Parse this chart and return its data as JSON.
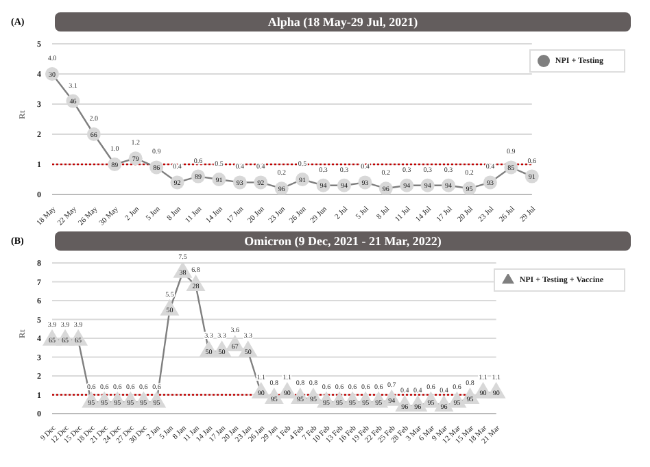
{
  "chart_data": [
    {
      "type": "line",
      "title": "Alpha (18 May-29 Jul, 2021)",
      "ylabel": "Rt",
      "annotations": [
        "(A)",
        {
          "text": "30",
          "x": "18 May",
          "y": 4.0
        },
        {
          "text": "46",
          "x": "22 May",
          "y": 3.1
        },
        {
          "text": "66",
          "x": "26 May",
          "y": 2.0
        },
        {
          "text": "89",
          "x": "30 May",
          "y": 1.0
        },
        {
          "text": "79",
          "x": "2 Jun",
          "y": 1.2
        },
        {
          "text": "86",
          "x": "5 Jun",
          "y": 0.9
        },
        {
          "text": "92",
          "x": "8 Jun",
          "y": 0.4
        },
        {
          "text": "89",
          "x": "11 Jun",
          "y": 0.6
        },
        {
          "text": "91",
          "x": "14 Jun",
          "y": 0.5
        },
        {
          "text": "93",
          "x": "17 Jun",
          "y": 0.4
        },
        {
          "text": "92",
          "x": "20 Jun",
          "y": 0.4
        },
        {
          "text": "96",
          "x": "23 Jun",
          "y": 0.2
        },
        {
          "text": "91",
          "x": "26 Jun",
          "y": 0.5
        },
        {
          "text": "94",
          "x": "29 Jun",
          "y": 0.3
        },
        {
          "text": "94",
          "x": "2 Jul",
          "y": 0.3
        },
        {
          "text": "93",
          "x": "5 Jul",
          "y": 0.4
        },
        {
          "text": "96",
          "x": "8 Jul",
          "y": 0.2
        },
        {
          "text": "94",
          "x": "11 Jul",
          "y": 0.3
        },
        {
          "text": "94",
          "x": "14 Jul",
          "y": 0.3
        },
        {
          "text": "94",
          "x": "17 Jul",
          "y": 0.3
        },
        {
          "text": "95",
          "x": "20 Jul",
          "y": 0.2
        },
        {
          "text": "93",
          "x": "23 Jul",
          "y": 0.4
        },
        {
          "text": "85",
          "x": "26 Jul",
          "y": 0.9
        },
        {
          "text": "91",
          "x": "29 Jul",
          "y": 0.6
        }
      ],
      "categories": [
        "18 May",
        "22 May",
        "26 May",
        "30 May",
        "2 Jun",
        "5 Jun",
        "8 Jun",
        "11 Jun",
        "14 Jun",
        "17 Jun",
        "20 Jun",
        "23 Jun",
        "26 Jun",
        "29 Jun",
        "2 Jul",
        "5 Jul",
        "8 Jul",
        "11 Jul",
        "14 Jul",
        "17 Jul",
        "20 Jul",
        "23 Jul",
        "26 Jul",
        "29 Jul"
      ],
      "series": [
        {
          "name": "NPI + Testing",
          "color": "#7f7f7f",
          "values": [
            4.0,
            3.1,
            2.0,
            1.0,
            1.2,
            0.9,
            0.4,
            0.6,
            0.5,
            0.4,
            0.4,
            0.2,
            0.5,
            0.3,
            0.3,
            0.4,
            0.2,
            0.3,
            0.3,
            0.3,
            0.2,
            0.4,
            0.9,
            0.6
          ],
          "value_labels": [
            "4.0",
            "3.1",
            "2.0",
            "1.0",
            "1.2",
            "0.9",
            "0.4",
            "0.6",
            "0.5",
            "0.4",
            "0.4",
            "0.2",
            "0.5",
            "0.3",
            "0.3",
            "0.4",
            "0.2",
            "0.3",
            "0.3",
            "0.3",
            "0.2",
            "0.4",
            "0.9",
            "0.6"
          ]
        }
      ],
      "ylim": [
        0,
        5
      ],
      "yticks": [
        0,
        1,
        2,
        3,
        4,
        5
      ],
      "grid": "y",
      "legend": "top right",
      "marker": "circle",
      "ref_lines": [
        {
          "axis": "y",
          "value": 1,
          "color": "#c00000",
          "line_style": "dotted"
        }
      ]
    },
    {
      "type": "line",
      "title": "Omicron (9 Dec, 2021 - 21 Mar, 2022)",
      "ylabel": "Rt",
      "annotations": [
        "(B)",
        {
          "text": "65",
          "x": "9 Dec",
          "y": 3.9
        },
        {
          "text": "65",
          "x": "12 Dec",
          "y": 3.9
        },
        {
          "text": "65",
          "x": "15 Dec",
          "y": 3.9
        },
        {
          "text": "95",
          "x": "18 Dec",
          "y": 0.6
        },
        {
          "text": "95",
          "x": "21 Dec",
          "y": 0.6
        },
        {
          "text": "95",
          "x": "24 Dec",
          "y": 0.6
        },
        {
          "text": "95",
          "x": "27 Dec",
          "y": 0.6
        },
        {
          "text": "95",
          "x": "30 Dec",
          "y": 0.6
        },
        {
          "text": "95",
          "x": "2 Jan",
          "y": 0.6
        },
        {
          "text": "50",
          "x": "5 Jan",
          "y": 5.5
        },
        {
          "text": "38",
          "x": "8 Jan",
          "y": 7.5
        },
        {
          "text": "28",
          "x": "11 Jan",
          "y": 6.8
        },
        {
          "text": "50",
          "x": "14 Jan",
          "y": 3.3
        },
        {
          "text": "50",
          "x": "17 Jan",
          "y": 3.3
        },
        {
          "text": "67",
          "x": "20 Jan",
          "y": 3.6
        },
        {
          "text": "50",
          "x": "23 Jan",
          "y": 3.3
        },
        {
          "text": "90",
          "x": "26 Jan",
          "y": 1.1
        },
        {
          "text": "95",
          "x": "29 Jan",
          "y": 0.8
        },
        {
          "text": "90",
          "x": "1 Feb",
          "y": 1.1
        },
        {
          "text": "95",
          "x": "4 Feb",
          "y": 0.8
        },
        {
          "text": "95",
          "x": "7 Feb",
          "y": 0.8
        },
        {
          "text": "95",
          "x": "10 Feb",
          "y": 0.6
        },
        {
          "text": "95",
          "x": "13 Feb",
          "y": 0.6
        },
        {
          "text": "95",
          "x": "16 Feb",
          "y": 0.6
        },
        {
          "text": "95",
          "x": "19 Feb",
          "y": 0.6
        },
        {
          "text": "95",
          "x": "22 Feb",
          "y": 0.6
        },
        {
          "text": "94",
          "x": "25 Feb",
          "y": 0.7
        },
        {
          "text": "96",
          "x": "28 Feb",
          "y": 0.4
        },
        {
          "text": "96",
          "x": "3 Mar",
          "y": 0.4
        },
        {
          "text": "95",
          "x": "6 Mar",
          "y": 0.6
        },
        {
          "text": "96",
          "x": "9 Mar",
          "y": 0.4
        },
        {
          "text": "95",
          "x": "12 Mar",
          "y": 0.6
        },
        {
          "text": "95",
          "x": "15 Mar",
          "y": 0.8
        },
        {
          "text": "90",
          "x": "18 Mar",
          "y": 1.1
        },
        {
          "text": "90",
          "x": "21 Mar",
          "y": 1.1
        }
      ],
      "categories": [
        "9 Dec",
        "12 Dec",
        "15 Dec",
        "18 Dec",
        "21 Dec",
        "24 Dec",
        "27 Dec",
        "30 Dec",
        "2 Jan",
        "5 Jan",
        "8 Jan",
        "11 Jan",
        "14 Jan",
        "17 Jan",
        "20 Jan",
        "23 Jan",
        "26 Jan",
        "29 Jan",
        "1 Feb",
        "4 Feb",
        "7 Feb",
        "10 Feb",
        "13 Feb",
        "16 Feb",
        "19 Feb",
        "22 Feb",
        "25 Feb",
        "28 Feb",
        "3 Mar",
        "6 Mar",
        "9 Mar",
        "12 Mar",
        "15 Mar",
        "18 Mar",
        "21 Mar"
      ],
      "series": [
        {
          "name": "NPI + Testing + Vaccine",
          "color": "#7f7f7f",
          "values": [
            3.9,
            3.9,
            3.9,
            0.6,
            0.6,
            0.6,
            0.6,
            0.6,
            0.6,
            5.5,
            7.5,
            6.8,
            3.3,
            3.3,
            3.6,
            3.3,
            1.1,
            0.8,
            1.1,
            0.8,
            0.8,
            0.6,
            0.6,
            0.6,
            0.6,
            0.6,
            0.7,
            0.4,
            0.4,
            0.6,
            0.4,
            0.6,
            0.8,
            1.1,
            1.1
          ],
          "value_labels": [
            "3.9",
            "3.9",
            "3.9",
            "0.6",
            "0.6",
            "0.6",
            "0.6",
            "0.6",
            "0.6",
            "5.5",
            "7.5",
            "6.8",
            "3.3",
            "3.3",
            "3.6",
            "3.3",
            "1.1",
            "0.8",
            "1.1",
            "0.8",
            "0.8",
            "0.6",
            "0.6",
            "0.6",
            "0.6",
            "0.6",
            "0.7",
            "0.4",
            "0.4",
            "0.6",
            "0.4",
            "0.6",
            "0.8",
            "1.1",
            "1.1"
          ]
        }
      ],
      "ylim": [
        0,
        8
      ],
      "yticks": [
        0,
        1,
        2,
        3,
        4,
        5,
        6,
        7,
        8
      ],
      "grid": "y",
      "legend": "top right",
      "marker": "triangle",
      "ref_lines": [
        {
          "axis": "y",
          "value": 1,
          "color": "#c00000",
          "line_style": "dotted"
        }
      ]
    }
  ]
}
